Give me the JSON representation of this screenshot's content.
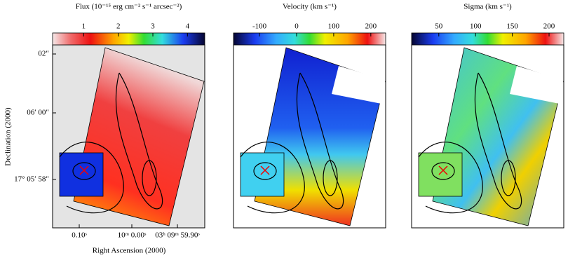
{
  "panels": [
    {
      "colorbar": {
        "label": "Flux (10⁻¹⁵ erg cm⁻² s⁻¹ arcsec⁻²)",
        "range": [
          0.1,
          4.5
        ],
        "ticks": [
          1,
          2,
          3,
          4
        ]
      }
    },
    {
      "colorbar": {
        "label": "Velocity (km s⁻¹)",
        "range": [
          -170,
          240
        ],
        "ticks": [
          -100,
          0,
          100,
          200
        ]
      }
    },
    {
      "colorbar": {
        "label": "Sigma (km s⁻¹)",
        "range": [
          13,
          220
        ],
        "ticks": [
          50,
          100,
          150,
          200
        ]
      }
    }
  ],
  "y_axis": {
    "label": "Declination (2000)",
    "ticks": [
      "02″",
      "06′ 00″",
      "17° 05′ 58″"
    ]
  },
  "x_axis": {
    "label": "Right Ascension (2000)",
    "ticks": [
      "0.10ˢ",
      "10ᵐ 0.00ˢ",
      "03ʰ 09ᵐ 59.90ˢ"
    ]
  }
}
